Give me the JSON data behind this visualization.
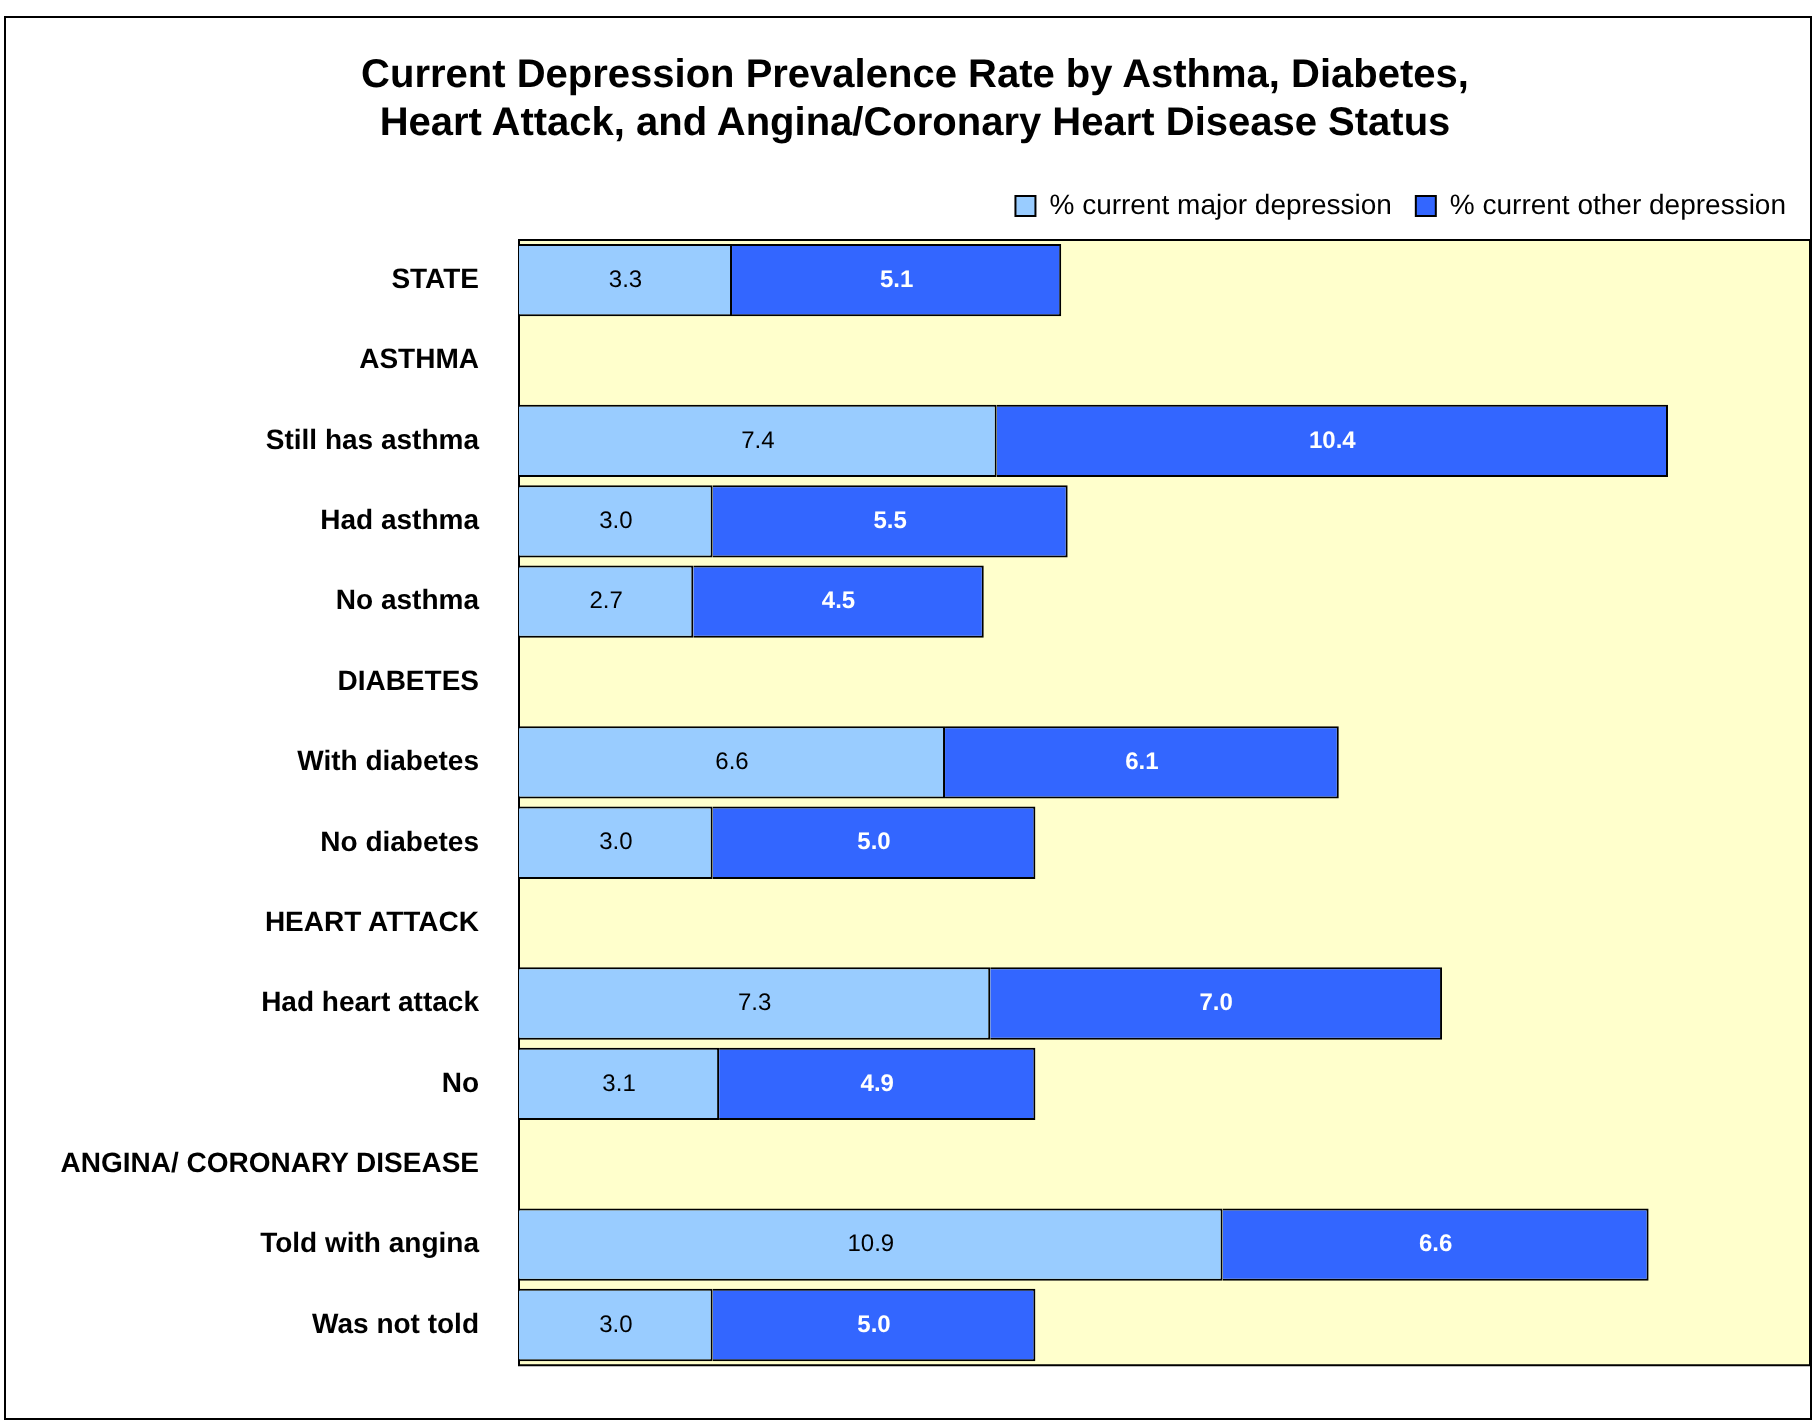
{
  "chart_data": {
    "type": "bar",
    "orientation": "horizontal",
    "stacked": true,
    "title": [
      "Current Depression Prevalence Rate by Asthma, Diabetes,",
      "Heart Attack, and Angina/Coronary Heart Disease Status"
    ],
    "categories": [
      "STATE",
      "ASTHMA",
      "Still has asthma",
      "Had asthma",
      "No asthma",
      "DIABETES",
      "With diabetes",
      "No diabetes",
      "HEART ATTACK",
      "Had heart attack",
      "No",
      "ANGINA/ CORONARY DISEASE",
      "Told with angina",
      "Was not told"
    ],
    "series": [
      {
        "name": "% current major depression",
        "color": "#99ccff",
        "values": [
          3.3,
          null,
          7.4,
          3.0,
          2.7,
          null,
          6.6,
          3.0,
          null,
          7.3,
          3.1,
          null,
          10.9,
          3.0
        ],
        "value_labels": [
          "3.3",
          null,
          "7.4",
          "3.0",
          "2.7",
          null,
          "6.6",
          "3.0",
          null,
          "7.3",
          "3.1",
          null,
          "10.9",
          "3.0"
        ]
      },
      {
        "name": "% current other depression",
        "color": "#3366ff",
        "values": [
          5.1,
          null,
          10.4,
          5.5,
          4.5,
          null,
          6.1,
          5.0,
          null,
          7.0,
          4.9,
          null,
          6.6,
          5.0
        ],
        "value_labels": [
          "5.1",
          null,
          "10.4",
          "5.5",
          "4.5",
          null,
          "6.1",
          "5.0",
          null,
          "7.0",
          "4.9",
          null,
          "6.6",
          "5.0"
        ]
      }
    ],
    "xlim": [
      0,
      20
    ],
    "tick_labels": "y",
    "legend": "top right",
    "grid": false
  }
}
